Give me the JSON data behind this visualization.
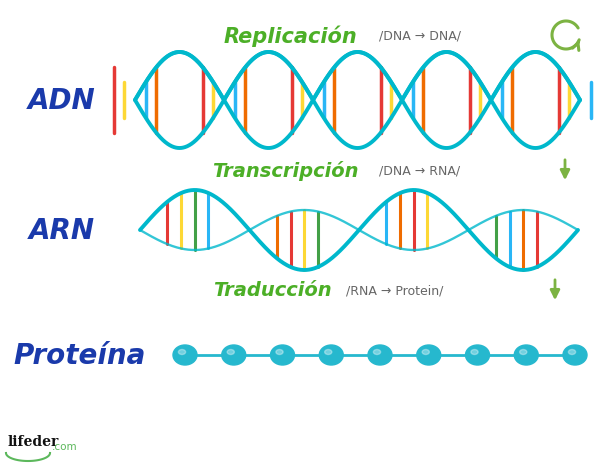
{
  "bg_color": "#ffffff",
  "adn_label": "ADN",
  "arn_label": "ARN",
  "proteina_label": "Proteína",
  "replicacion_label": "Replicación",
  "replicacion_formula": "/DNA → DNA/",
  "transcripcion_label": "Transcripción",
  "transcripcion_formula": "/DNA → RNA/",
  "traduccion_label": "Traducción",
  "traduccion_formula": "/RNA → Protein/",
  "green_color": "#4caf27",
  "blue_label_color": "#1a3aab",
  "dna_color": "#00b8cc",
  "protein_bead_color": "#26b8ce",
  "bar_colors": [
    "#e53935",
    "#fdd835",
    "#43a047",
    "#29b6f6",
    "#ef6c00"
  ],
  "lifeder_color": "#111111",
  "arrow_color": "#7cb342",
  "figsize": [
    6.0,
    4.64
  ],
  "dpi": 100
}
